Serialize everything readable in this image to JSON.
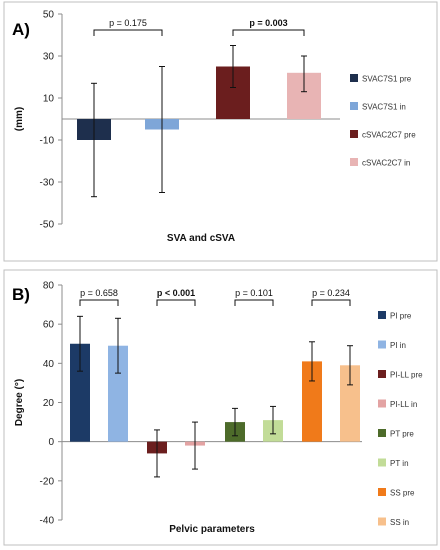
{
  "chart_data": [
    {
      "panel": "A)",
      "type": "bar",
      "categories": [
        "SVAC7S1 pre",
        "SVAC7S1 in",
        "cSVAC2C7 pre",
        "cSVAC2C7 in"
      ],
      "values": [
        -10,
        -5,
        25,
        22
      ],
      "error_low": [
        -37,
        -35,
        15,
        13
      ],
      "error_high": [
        17,
        25,
        35,
        30
      ],
      "colors": [
        "#1e2f4d",
        "#7ea6d8",
        "#6b1e1e",
        "#e8b4b4"
      ],
      "ylabel": "(mm)",
      "xlabel": "SVA and cSVA",
      "ylim": [
        -50,
        50
      ],
      "yticks": [
        -50,
        -30,
        -10,
        10,
        30,
        50
      ],
      "grid": false,
      "legend_position": "right",
      "comparisons": [
        {
          "from": 0,
          "to": 1,
          "label": "p = 0.175",
          "bold": false
        },
        {
          "from": 2,
          "to": 3,
          "label": "p = 0.003",
          "bold": true
        }
      ]
    },
    {
      "panel": "B)",
      "type": "bar",
      "categories": [
        "PI pre",
        "PI in",
        "PI-LL pre",
        "PI-LL in",
        "PT pre",
        "PT in",
        "SS pre",
        "SS in"
      ],
      "values": [
        50,
        49,
        -6,
        -2,
        10,
        11,
        41,
        39
      ],
      "error_low": [
        36,
        35,
        -18,
        -14,
        3,
        4,
        31,
        29
      ],
      "error_high": [
        64,
        63,
        6,
        10,
        17,
        18,
        51,
        49
      ],
      "colors": [
        "#1c3a66",
        "#8fb4e3",
        "#6b1e1e",
        "#e3a3a3",
        "#4d6b2a",
        "#c2dc98",
        "#f07a1a",
        "#f7c08c"
      ],
      "ylabel": "Degree (°)",
      "xlabel": "Pelvic parameters",
      "ylim": [
        -40,
        80
      ],
      "yticks": [
        -40,
        -20,
        0,
        20,
        40,
        60,
        80
      ],
      "grid": false,
      "legend_position": "right",
      "comparisons": [
        {
          "from": 0,
          "to": 1,
          "label": "p = 0.658",
          "bold": false
        },
        {
          "from": 2,
          "to": 3,
          "label": "p < 0.001",
          "bold": true
        },
        {
          "from": 4,
          "to": 5,
          "label": "p = 0.101",
          "bold": false
        },
        {
          "from": 6,
          "to": 7,
          "label": "p = 0.234",
          "bold": false
        }
      ]
    }
  ]
}
